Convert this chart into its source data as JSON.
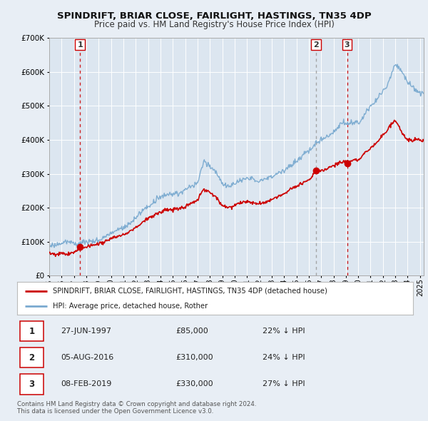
{
  "title": "SPINDRIFT, BRIAR CLOSE, FAIRLIGHT, HASTINGS, TN35 4DP",
  "subtitle": "Price paid vs. HM Land Registry's House Price Index (HPI)",
  "bg_color": "#e8eef5",
  "plot_bg_color": "#dce6f0",
  "red_color": "#cc0000",
  "blue_color": "#7aaad0",
  "sale_dates_decimal": [
    1997.49,
    2016.59,
    2019.1
  ],
  "sale_prices": [
    85000,
    310000,
    330000
  ],
  "sale_labels": [
    "1",
    "2",
    "3"
  ],
  "vline1_color": "#cc0000",
  "vline1_style": "dashed",
  "vline2_color": "#999999",
  "vline2_style": "dashed",
  "vline3_color": "#cc0000",
  "vline3_style": "dashed",
  "legend_label_red": "SPINDRIFT, BRIAR CLOSE, FAIRLIGHT, HASTINGS, TN35 4DP (detached house)",
  "legend_label_blue": "HPI: Average price, detached house, Rother",
  "table_rows": [
    [
      "1",
      "27-JUN-1997",
      "£85,000",
      "22% ↓ HPI"
    ],
    [
      "2",
      "05-AUG-2016",
      "£310,000",
      "24% ↓ HPI"
    ],
    [
      "3",
      "08-FEB-2019",
      "£330,000",
      "27% ↓ HPI"
    ]
  ],
  "footer": "Contains HM Land Registry data © Crown copyright and database right 2024.\nThis data is licensed under the Open Government Licence v3.0.",
  "ylim": [
    0,
    700000
  ],
  "yticks": [
    0,
    100000,
    200000,
    300000,
    400000,
    500000,
    600000,
    700000
  ],
  "xlim_start": 1995.0,
  "xlim_end": 2025.3,
  "xticks": [
    1995,
    1996,
    1997,
    1998,
    1999,
    2000,
    2001,
    2002,
    2003,
    2004,
    2005,
    2006,
    2007,
    2008,
    2009,
    2010,
    2011,
    2012,
    2013,
    2014,
    2015,
    2016,
    2017,
    2018,
    2019,
    2020,
    2021,
    2022,
    2023,
    2024,
    2025
  ]
}
